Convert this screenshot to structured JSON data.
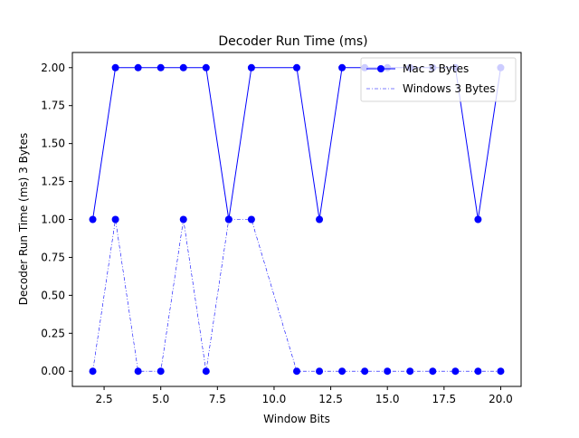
{
  "chart_data": {
    "type": "line",
    "title": "Decoder Run Time (ms)",
    "xlabel": "Window Bits",
    "ylabel": "Decoder Run Time (ms)  3 Bytes",
    "xlim": [
      1.1,
      20.9
    ],
    "ylim": [
      -0.1,
      2.1
    ],
    "xticks": [
      2.5,
      5.0,
      7.5,
      10.0,
      12.5,
      15.0,
      17.5,
      20.0
    ],
    "xtick_labels": [
      "2.5",
      "5.0",
      "7.5",
      "10.0",
      "12.5",
      "15.0",
      "17.5",
      "20.0"
    ],
    "yticks": [
      0.0,
      0.25,
      0.5,
      0.75,
      1.0,
      1.25,
      1.5,
      1.75,
      2.0
    ],
    "ytick_labels": [
      "0.00",
      "0.25",
      "0.50",
      "0.75",
      "1.00",
      "1.25",
      "1.50",
      "1.75",
      "2.00"
    ],
    "grid": false,
    "legend_position": "top-right",
    "series": [
      {
        "name": "Mac 3 Bytes",
        "color": "#0000ff",
        "line_style": "solid",
        "marker": "circle",
        "x": [
          2,
          3,
          4,
          5,
          6,
          7,
          8,
          9,
          11,
          12,
          13,
          14,
          15,
          16,
          17,
          18,
          19,
          20
        ],
        "y": [
          1,
          2,
          2,
          2,
          2,
          2,
          1,
          2,
          2,
          1,
          2,
          2,
          2,
          2,
          2,
          2,
          1,
          2
        ]
      },
      {
        "name": "Windows 3 Bytes",
        "color": "#0000ff",
        "line_style": "dashdot",
        "marker": "circle",
        "x": [
          2,
          3,
          4,
          5,
          6,
          7,
          8,
          9,
          11,
          12,
          13,
          14,
          15,
          16,
          17,
          18,
          19,
          20
        ],
        "y": [
          0,
          1,
          0,
          0,
          1,
          0,
          1,
          1,
          0,
          0,
          0,
          0,
          0,
          0,
          0,
          0,
          0,
          0
        ]
      }
    ]
  }
}
